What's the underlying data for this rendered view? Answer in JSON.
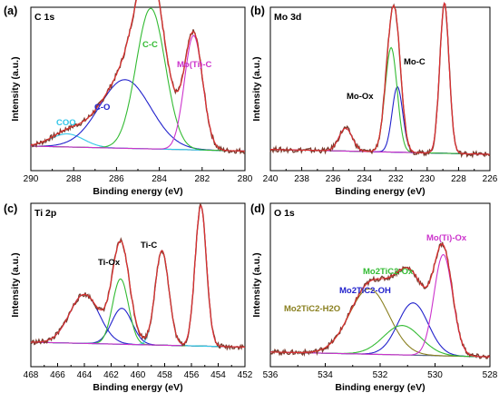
{
  "chart_data": [
    {
      "type": "line",
      "panel_label": "(a)",
      "title": "C 1s",
      "xlabel": "Binding energy (eV)",
      "ylabel": "Intensity (a.u.)",
      "xlim": [
        290,
        280
      ],
      "xticks": [
        "290",
        "288",
        "286",
        "284",
        "282",
        "280"
      ],
      "baseline": 0.12,
      "peaks": [
        {
          "label": "COO",
          "color": "#33c6e8",
          "center": 288.3,
          "fwhm": 1.8,
          "height": 0.08
        },
        {
          "label": "C-O",
          "color": "#2222cc",
          "center": 285.6,
          "fwhm": 2.8,
          "height": 0.42
        },
        {
          "label": "C-C",
          "color": "#33bb33",
          "center": 284.4,
          "fwhm": 1.6,
          "height": 0.86
        },
        {
          "label": "Mo(Ti)-C",
          "color": "#cc33cc",
          "center": 282.4,
          "fwhm": 1.0,
          "height": 0.7
        }
      ]
    },
    {
      "type": "line",
      "panel_label": "(b)",
      "title": "Mo 3d",
      "xlabel": "Binding energy (eV)",
      "ylabel": "Intensity (a.u.)",
      "xlim": [
        240,
        226
      ],
      "xticks": [
        "240",
        "238",
        "236",
        "234",
        "232",
        "230",
        "228",
        "226"
      ],
      "baseline": 0.1,
      "peaks": [
        {
          "label": "Mo-Ox",
          "color": "#2222cc",
          "center": 231.9,
          "fwhm": 0.8,
          "height": 0.4
        },
        {
          "label": "Mo-Ox",
          "color": "#2222cc",
          "center": 235.2,
          "fwhm": 1.0,
          "height": 0.14
        },
        {
          "label": "Mo-C",
          "color": "#33bb33",
          "center": 232.3,
          "fwhm": 0.9,
          "height": 0.64
        },
        {
          "label": "Mo-C",
          "color": "#cc33cc",
          "center": 228.9,
          "fwhm": 0.7,
          "height": 0.92
        }
      ]
    },
    {
      "type": "line",
      "panel_label": "(c)",
      "title": "Ti 2p",
      "xlabel": "Binding energy (eV)",
      "ylabel": "Intensity (a.u.)",
      "xlim": [
        468,
        452
      ],
      "xticks": [
        "468",
        "466",
        "464",
        "462",
        "460",
        "458",
        "456",
        "454",
        "452"
      ],
      "baseline": 0.12,
      "peaks": [
        {
          "label": "Ti-Ox",
          "color": "#2222cc",
          "center": 464.0,
          "fwhm": 2.6,
          "height": 0.3
        },
        {
          "label": "Ti-Ox",
          "color": "#2222cc",
          "center": 461.2,
          "fwhm": 1.8,
          "height": 0.22
        },
        {
          "label": "Ti-C",
          "color": "#33bb33",
          "center": 461.3,
          "fwhm": 1.4,
          "height": 0.4
        },
        {
          "label": "Ti-C",
          "color": "#33c6e8",
          "center": 458.2,
          "fwhm": 1.2,
          "height": 0.58
        },
        {
          "label": "Ti-C",
          "color": "#cc33cc",
          "center": 455.3,
          "fwhm": 1.0,
          "height": 0.86
        }
      ]
    },
    {
      "type": "line",
      "panel_label": "(d)",
      "title": "O 1s",
      "xlabel": "Binding energy (eV)",
      "ylabel": "Intensity (a.u.)",
      "xlim": [
        536,
        528
      ],
      "xticks": [
        "536",
        "534",
        "532",
        "530",
        "528"
      ],
      "baseline": 0.06,
      "peaks": [
        {
          "label": "Mo2TiC2-H2O",
          "color": "#8a8020",
          "center": 532.4,
          "fwhm": 1.7,
          "height": 0.4
        },
        {
          "label": "Mo2TiC2-OH",
          "color": "#2222cc",
          "center": 530.8,
          "fwhm": 1.3,
          "height": 0.32
        },
        {
          "label": "Mo2TiC2-Ox",
          "color": "#33bb33",
          "center": 531.2,
          "fwhm": 1.6,
          "height": 0.18
        },
        {
          "label": "Mo(Ti)-Ox",
          "color": "#cc33cc",
          "center": 529.7,
          "fwhm": 0.8,
          "height": 0.62
        }
      ]
    }
  ],
  "annotations": {
    "a": {
      "coo": "COO",
      "co": "C-O",
      "cc": "C-C",
      "motic": "Mo(Ti)-C"
    },
    "b": {
      "moox": "Mo-Ox",
      "moc": "Mo-C"
    },
    "c": {
      "tiox": "Ti-Ox",
      "tic": "Ti-C"
    },
    "d": {
      "h2o": "Mo2TiC2-H2O",
      "oh": "Mo2TiC2-OH",
      "ox": "Mo2TiC2-Ox",
      "motiox": "Mo(Ti)-Ox"
    }
  },
  "colors": {
    "raw": "#7a3b2e",
    "envelope": "#e03030",
    "background": "#5a6a8a"
  }
}
